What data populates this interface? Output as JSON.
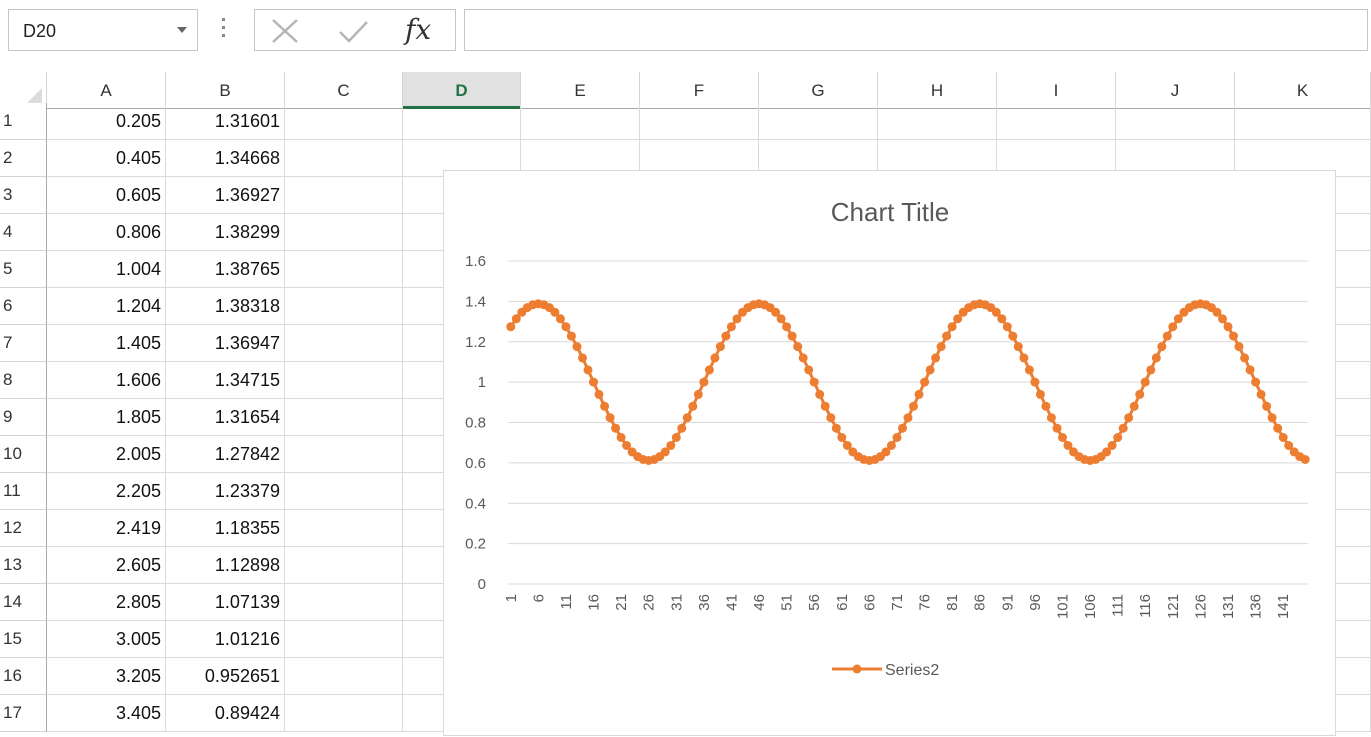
{
  "formula_bar": {
    "name_box": "D20",
    "fx_label": "fx",
    "formula": ""
  },
  "columns": [
    "A",
    "B",
    "C",
    "D",
    "E",
    "F",
    "G",
    "H",
    "I",
    "J",
    "K"
  ],
  "selected_column": "D",
  "rows": [
    {
      "num": "1",
      "a": "0.205",
      "b": "1.31601"
    },
    {
      "num": "2",
      "a": "0.405",
      "b": "1.34668"
    },
    {
      "num": "3",
      "a": "0.605",
      "b": "1.36927"
    },
    {
      "num": "4",
      "a": "0.806",
      "b": "1.38299"
    },
    {
      "num": "5",
      "a": "1.004",
      "b": "1.38765"
    },
    {
      "num": "6",
      "a": "1.204",
      "b": "1.38318"
    },
    {
      "num": "7",
      "a": "1.405",
      "b": "1.36947"
    },
    {
      "num": "8",
      "a": "1.606",
      "b": "1.34715"
    },
    {
      "num": "9",
      "a": "1.805",
      "b": "1.31654"
    },
    {
      "num": "10",
      "a": "2.005",
      "b": "1.27842"
    },
    {
      "num": "11",
      "a": "2.205",
      "b": "1.23379"
    },
    {
      "num": "12",
      "a": "2.419",
      "b": "1.18355"
    },
    {
      "num": "13",
      "a": "2.605",
      "b": "1.12898"
    },
    {
      "num": "14",
      "a": "2.805",
      "b": "1.07139"
    },
    {
      "num": "15",
      "a": "3.005",
      "b": "1.01216"
    },
    {
      "num": "16",
      "a": "3.205",
      "b": "0.952651"
    },
    {
      "num": "17",
      "a": "3.405",
      "b": "0.89424"
    }
  ],
  "chart_data": {
    "type": "line",
    "title": "Chart Title",
    "series": [
      {
        "name": "Series2",
        "color": "#ED7D31",
        "mean": 1.0,
        "amplitude": 0.388,
        "period": 40,
        "phase_peak_index": 5,
        "count": 145
      }
    ],
    "x_tick_labels": [
      "1",
      "6",
      "11",
      "16",
      "21",
      "26",
      "31",
      "36",
      "41",
      "46",
      "51",
      "56",
      "61",
      "66",
      "71",
      "76",
      "81",
      "86",
      "91",
      "96",
      "101",
      "106",
      "111",
      "116",
      "121",
      "126",
      "131",
      "136",
      "141"
    ],
    "y_tick_labels": [
      "0",
      "0.2",
      "0.4",
      "0.6",
      "0.8",
      "1",
      "1.2",
      "1.4",
      "1.6"
    ],
    "ylim": [
      0,
      1.6
    ],
    "grid": true,
    "legend_position": "bottom"
  }
}
